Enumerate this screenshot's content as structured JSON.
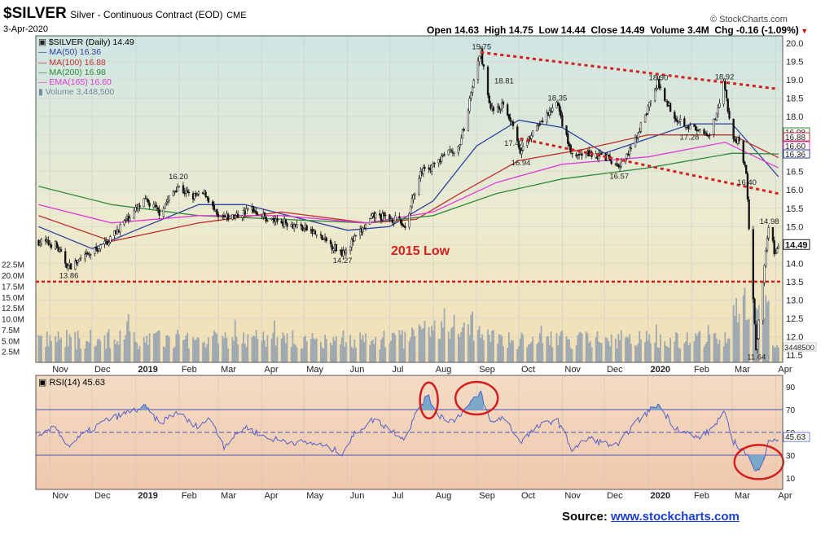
{
  "header": {
    "symbol": "$SILVER",
    "name": "Silver - Continuous Contract (EOD)",
    "exchange": "CME",
    "date": "3-Apr-2020",
    "brand": "© StockCharts.com",
    "ohlc": {
      "open_label": "Open",
      "open": "14.63",
      "high_label": "High",
      "high": "14.75",
      "low_label": "Low",
      "low": "14.44",
      "close_label": "Close",
      "close": "14.49",
      "volume_label": "Volume",
      "volume": "3.4M",
      "chg_label": "Chg",
      "chg": "-0.16 (-1.09%)"
    }
  },
  "legend": {
    "price": "$SILVER (Daily) 14.49",
    "ma50": "MA(50) 16.36",
    "ma100": "MA(100) 16.88",
    "ma200": "MA(200) 16.98",
    "ema165": "EMA(165) 16.60",
    "volume": "Volume 3,448,500"
  },
  "rsi_legend": "RSI(14) 45.63",
  "annotation": "2015 Low",
  "source": {
    "label": "Source:",
    "link": "www.stockcharts.com"
  },
  "colors": {
    "price": "#111111",
    "ma50": "#2a3fa0",
    "ma100": "#c03030",
    "ma200": "#2e8b3a",
    "ema165": "#e03ad8",
    "volume": "#9ea8b0",
    "rsi": "#5560c8",
    "annotation": "#d42020"
  },
  "chart_data": [
    {
      "type": "candlestick",
      "title": "$SILVER (Daily)",
      "x_ticks": [
        "Nov",
        "Dec",
        "2019",
        "Feb",
        "Mar",
        "Apr",
        "May",
        "Jun",
        "Jul",
        "Aug",
        "Sep",
        "Oct",
        "Nov",
        "Dec",
        "2020",
        "Feb",
        "Mar",
        "Apr"
      ],
      "y_ticks": [
        11.5,
        12.0,
        12.5,
        13.0,
        13.5,
        14.0,
        14.5,
        15.0,
        15.5,
        16.0,
        16.5,
        17.0,
        17.5,
        18.0,
        18.5,
        19.0,
        19.5,
        20.0
      ],
      "ylim": [
        11.3,
        20.2
      ],
      "price_path": [
        [
          "2018-10-24",
          14.6
        ],
        [
          "2018-11-05",
          14.5
        ],
        [
          "2018-11-14",
          13.9
        ],
        [
          "2018-11-28",
          14.2
        ],
        [
          "2018-12-12",
          14.6
        ],
        [
          "2018-12-28",
          15.3
        ],
        [
          "2019-01-08",
          15.7
        ],
        [
          "2019-01-18",
          15.4
        ],
        [
          "2019-01-31",
          16.1
        ],
        [
          "2019-02-10",
          15.8
        ],
        [
          "2019-02-20",
          15.9
        ],
        [
          "2019-03-01",
          15.2
        ],
        [
          "2019-03-15",
          15.3
        ],
        [
          "2019-03-25",
          15.5
        ],
        [
          "2019-04-05",
          15.2
        ],
        [
          "2019-04-20",
          15.1
        ],
        [
          "2019-05-05",
          14.9
        ],
        [
          "2019-05-28",
          14.3
        ],
        [
          "2019-06-07",
          14.7
        ],
        [
          "2019-06-20",
          15.3
        ],
        [
          "2019-07-05",
          15.2
        ],
        [
          "2019-07-12",
          15.0
        ],
        [
          "2019-07-22",
          16.4
        ],
        [
          "2019-08-05",
          16.8
        ],
        [
          "2019-08-20",
          17.2
        ],
        [
          "2019-09-04",
          19.75
        ],
        [
          "2019-09-11",
          18.2
        ],
        [
          "2019-09-20",
          18.3
        ],
        [
          "2019-09-27",
          17.8
        ],
        [
          "2019-10-02",
          16.94
        ],
        [
          "2019-10-10",
          17.5
        ],
        [
          "2019-10-28",
          18.35
        ],
        [
          "2019-11-08",
          16.9
        ],
        [
          "2019-11-20",
          17.0
        ],
        [
          "2019-12-02",
          16.9
        ],
        [
          "2019-12-11",
          16.57
        ],
        [
          "2019-12-20",
          17.1
        ],
        [
          "2020-01-08",
          18.9
        ],
        [
          "2020-01-20",
          18.0
        ],
        [
          "2020-02-05",
          17.6
        ],
        [
          "2020-02-14",
          17.4
        ],
        [
          "2020-02-24",
          18.92
        ],
        [
          "2020-03-02",
          17.3
        ],
        [
          "2020-03-06",
          17.4
        ],
        [
          "2020-03-11",
          16.4
        ],
        [
          "2020-03-18",
          11.64
        ],
        [
          "2020-03-24",
          13.9
        ],
        [
          "2020-03-27",
          14.98
        ],
        [
          "2020-04-01",
          14.2
        ],
        [
          "2020-04-03",
          14.49
        ]
      ],
      "labeled_points": [
        {
          "date": "2018-11-14",
          "value": 13.86,
          "label": "13.86"
        },
        {
          "date": "2019-01-31",
          "value": 16.2,
          "label": "16.20"
        },
        {
          "date": "2019-05-28",
          "value": 14.27,
          "label": "14.27"
        },
        {
          "date": "2019-09-04",
          "value": 19.75,
          "label": "19.75"
        },
        {
          "date": "2019-09-20",
          "value": 18.81,
          "label": "18.81"
        },
        {
          "date": "2019-09-27",
          "value": 17.47,
          "label": "17.47"
        },
        {
          "date": "2019-10-02",
          "value": 16.94,
          "label": "16.94"
        },
        {
          "date": "2019-10-28",
          "value": 18.35,
          "label": "18.35"
        },
        {
          "date": "2019-12-11",
          "value": 16.57,
          "label": "16.57"
        },
        {
          "date": "2020-01-08",
          "value": 18.9,
          "label": "18.90"
        },
        {
          "date": "2020-01-30",
          "value": 17.28,
          "label": "17.28"
        },
        {
          "date": "2020-02-24",
          "value": 18.92,
          "label": "18.92"
        },
        {
          "date": "2020-03-11",
          "value": 16.4,
          "label": "16.40"
        },
        {
          "date": "2020-03-18",
          "value": 11.64,
          "label": "11.64"
        },
        {
          "date": "2020-03-27",
          "value": 14.98,
          "label": "14.98"
        }
      ],
      "moving_averages": [
        {
          "name": "MA(50)",
          "color": "#2a3fa0",
          "points": [
            [
              "2018-10-24",
              15.0
            ],
            [
              "2018-12-01",
              14.4
            ],
            [
              "2019-01-01",
              14.9
            ],
            [
              "2019-02-15",
              15.6
            ],
            [
              "2019-03-20",
              15.6
            ],
            [
              "2019-04-20",
              15.3
            ],
            [
              "2019-06-01",
              14.9
            ],
            [
              "2019-07-01",
              15.0
            ],
            [
              "2019-08-01",
              15.7
            ],
            [
              "2019-09-01",
              17.2
            ],
            [
              "2019-10-01",
              17.9
            ],
            [
              "2019-11-01",
              17.7
            ],
            [
              "2019-12-01",
              17.0
            ],
            [
              "2020-01-01",
              17.4
            ],
            [
              "2020-02-01",
              17.8
            ],
            [
              "2020-03-01",
              17.8
            ],
            [
              "2020-04-03",
              16.36
            ]
          ]
        },
        {
          "name": "MA(100)",
          "color": "#c03030",
          "points": [
            [
              "2018-10-24",
              15.3
            ],
            [
              "2018-12-15",
              14.6
            ],
            [
              "2019-02-15",
              15.1
            ],
            [
              "2019-04-15",
              15.4
            ],
            [
              "2019-06-15",
              15.1
            ],
            [
              "2019-07-20",
              15.2
            ],
            [
              "2019-08-20",
              15.9
            ],
            [
              "2019-10-01",
              16.8
            ],
            [
              "2019-11-15",
              17.1
            ],
            [
              "2020-01-01",
              17.5
            ],
            [
              "2020-03-01",
              17.5
            ],
            [
              "2020-04-03",
              16.88
            ]
          ]
        },
        {
          "name": "MA(200)",
          "color": "#2e8b3a",
          "points": [
            [
              "2018-10-24",
              16.1
            ],
            [
              "2018-12-15",
              15.6
            ],
            [
              "2019-02-15",
              15.3
            ],
            [
              "2019-04-15",
              15.2
            ],
            [
              "2019-06-15",
              15.1
            ],
            [
              "2019-08-01",
              15.3
            ],
            [
              "2019-09-15",
              15.9
            ],
            [
              "2019-11-01",
              16.3
            ],
            [
              "2020-01-01",
              16.6
            ],
            [
              "2020-03-01",
              17.0
            ],
            [
              "2020-04-03",
              16.98
            ]
          ]
        },
        {
          "name": "EMA(165)",
          "color": "#e03ad8",
          "points": [
            [
              "2018-10-24",
              15.6
            ],
            [
              "2018-12-15",
              15.1
            ],
            [
              "2019-02-15",
              15.3
            ],
            [
              "2019-04-15",
              15.3
            ],
            [
              "2019-06-15",
              15.1
            ],
            [
              "2019-08-01",
              15.4
            ],
            [
              "2019-09-15",
              16.2
            ],
            [
              "2019-11-01",
              16.7
            ],
            [
              "2020-01-01",
              16.9
            ],
            [
              "2020-02-25",
              17.3
            ],
            [
              "2020-04-03",
              16.6
            ]
          ]
        }
      ],
      "resistance_line": [
        [
          "2019-09-04",
          19.75
        ],
        [
          "2020-04-03",
          18.75
        ]
      ],
      "support_line": [
        [
          "2019-10-02",
          17.4
        ],
        [
          "2020-04-03",
          15.9
        ]
      ],
      "support_2015_low": 13.5,
      "right_axis_labels": [
        "16.98",
        "16.88",
        "16.60",
        "16.36",
        "14.49",
        "3448500"
      ]
    },
    {
      "type": "bar",
      "title": "Volume",
      "y_ticks": [
        "2.5M",
        "5.0M",
        "7.5M",
        "10.0M",
        "12.5M",
        "15.0M",
        "17.5M",
        "20.0M",
        "22.5M"
      ],
      "ylim": [
        0,
        23000000
      ],
      "last_value": 3448500
    },
    {
      "type": "line",
      "title": "RSI(14)",
      "y_ticks": [
        10,
        30,
        50,
        70,
        90
      ],
      "ylim": [
        0,
        100
      ],
      "reference_lines": [
        30,
        50,
        70
      ],
      "last_value": 45.63,
      "points": [
        [
          "2018-10-24",
          45
        ],
        [
          "2018-11-05",
          55
        ],
        [
          "2018-11-14",
          38
        ],
        [
          "2018-11-25",
          48
        ],
        [
          "2018-12-10",
          60
        ],
        [
          "2018-12-28",
          68
        ],
        [
          "2019-01-08",
          72
        ],
        [
          "2019-01-18",
          58
        ],
        [
          "2019-01-31",
          68
        ],
        [
          "2019-02-12",
          55
        ],
        [
          "2019-02-24",
          62
        ],
        [
          "2019-03-05",
          38
        ],
        [
          "2019-03-20",
          55
        ],
        [
          "2019-04-05",
          45
        ],
        [
          "2019-04-20",
          42
        ],
        [
          "2019-05-10",
          40
        ],
        [
          "2019-05-28",
          32
        ],
        [
          "2019-06-07",
          50
        ],
        [
          "2019-06-20",
          62
        ],
        [
          "2019-07-02",
          52
        ],
        [
          "2019-07-12",
          45
        ],
        [
          "2019-07-22",
          72
        ],
        [
          "2019-07-28",
          82
        ],
        [
          "2019-08-05",
          65
        ],
        [
          "2019-08-15",
          60
        ],
        [
          "2019-08-25",
          72
        ],
        [
          "2019-09-04",
          85
        ],
        [
          "2019-09-11",
          58
        ],
        [
          "2019-09-20",
          64
        ],
        [
          "2019-10-02",
          42
        ],
        [
          "2019-10-15",
          55
        ],
        [
          "2019-10-28",
          62
        ],
        [
          "2019-11-08",
          35
        ],
        [
          "2019-11-20",
          45
        ],
        [
          "2019-12-02",
          40
        ],
        [
          "2019-12-11",
          38
        ],
        [
          "2019-12-20",
          55
        ],
        [
          "2020-01-08",
          75
        ],
        [
          "2020-01-20",
          55
        ],
        [
          "2020-02-05",
          45
        ],
        [
          "2020-02-15",
          52
        ],
        [
          "2020-02-24",
          68
        ],
        [
          "2020-03-02",
          42
        ],
        [
          "2020-03-11",
          32
        ],
        [
          "2020-03-18",
          14
        ],
        [
          "2020-03-24",
          30
        ],
        [
          "2020-03-27",
          45
        ],
        [
          "2020-04-01",
          41
        ],
        [
          "2020-04-03",
          45.63
        ]
      ]
    }
  ]
}
